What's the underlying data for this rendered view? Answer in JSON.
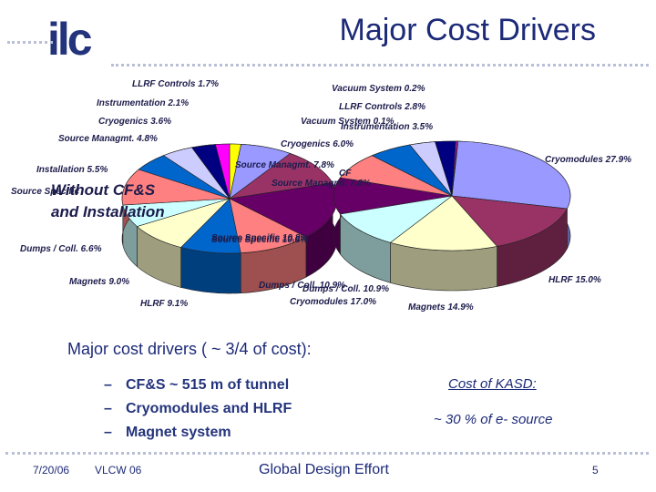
{
  "header": {
    "logo_text": "ilc",
    "title": "Major Cost Drivers"
  },
  "chart_annotation": {
    "line1": "Without CF&S",
    "line2": "and Installation"
  },
  "colors": {
    "title": "#1c2a78",
    "logo": "#24347c",
    "dots": "#b8bfd6"
  },
  "chart_data": [
    {
      "type": "pie",
      "title": "",
      "slices": [
        {
          "label": "LLRF Controls",
          "value": 1.7,
          "text": "LLRF Controls 1.7%",
          "color": "#ffff00"
        },
        {
          "label": "Source Managmt.",
          "value": 7.8,
          "text": "Source Managmt. 7.8%",
          "color": "#9999ff"
        },
        {
          "label": "Source Specific",
          "value": 10.8,
          "text": "Source Specific 10.8%",
          "color": "#993366"
        },
        {
          "label": "Cryomodules",
          "value": 17.0,
          "text": "Cryomodules 17.0%",
          "color": "#660066"
        },
        {
          "label": "Dumps / Coll.",
          "value": 10.9,
          "text": "Dumps / Coll. 10.9%",
          "color": "#ff8080"
        },
        {
          "label": "HLRF",
          "value": 9.1,
          "text": "HLRF 9.1%",
          "color": "#0066cc"
        },
        {
          "label": "Magnets",
          "value": 9.0,
          "text": "Magnets 9.0%",
          "color": "#ffffcc"
        },
        {
          "label": "Dumps / Coll.",
          "value": 6.6,
          "text": "Dumps / Coll. 6.6%",
          "color": "#ccffff"
        },
        {
          "label": "Source Specific",
          "value": 10.8,
          "text": "Source Specific",
          "color": "#ff8080"
        },
        {
          "label": "Installation",
          "value": 5.5,
          "text": "Installation 5.5%",
          "color": "#0066cc"
        },
        {
          "label": "Source Managmt.",
          "value": 4.8,
          "text": "Source Managmt. 4.8%",
          "color": "#ccccff"
        },
        {
          "label": "Cryogenics",
          "value": 3.6,
          "text": "Cryogenics 3.6%",
          "color": "#000080"
        },
        {
          "label": "Instrumentation",
          "value": 2.1,
          "text": "Instrumentation 2.1%",
          "color": "#ff00ff"
        }
      ]
    },
    {
      "type": "pie",
      "title": "",
      "slices": [
        {
          "label": "Cryomodules",
          "value": 27.9,
          "text": "Cryomodules 27.9%",
          "color": "#9999ff"
        },
        {
          "label": "HLRF",
          "value": 15.0,
          "text": "HLRF 15.0%",
          "color": "#993366"
        },
        {
          "label": "Magnets",
          "value": 14.9,
          "text": "Magnets 14.9%",
          "color": "#ffffcc"
        },
        {
          "label": "Dumps / Coll.",
          "value": 10.9,
          "text": "Dumps / Coll. 10.9%",
          "color": "#ccffff"
        },
        {
          "label": "Source Specific",
          "value": 10.8,
          "text": "Source Specific 10.8%",
          "color": "#660066"
        },
        {
          "label": "Source Managmt.",
          "value": 7.8,
          "text": "Source Managmt. 7.8%",
          "color": "#ff8080"
        },
        {
          "label": "Cryogenics",
          "value": 6.0,
          "text": "Cryogenics 6.0%",
          "color": "#0066cc"
        },
        {
          "label": "Instrumentation",
          "value": 3.5,
          "text": "Instrumentation 3.5%",
          "color": "#ccccff"
        },
        {
          "label": "LLRF Controls",
          "value": 2.8,
          "text": "LLRF Controls 2.8%",
          "color": "#000080"
        },
        {
          "label": "Vacuum System",
          "value": 0.2,
          "text": "Vacuum System 0.2%",
          "color": "#ff00ff"
        },
        {
          "label": "Vacuum System",
          "value": 0.1,
          "text": "Vacuum System 0.1%",
          "color": "#ffff00"
        },
        {
          "label": "CF&S",
          "value": 0,
          "text": "CF",
          "color": "#ffffff"
        }
      ]
    }
  ],
  "content": {
    "main_text": "Major cost drivers ( ~ 3/4 of cost):",
    "bullets": [
      "CF&S ~ 515 m of tunnel",
      "Cryomodules and HLRF",
      "Magnet system"
    ],
    "bullet_marker": "–",
    "kasd_title": "Cost of KASD:",
    "kasd_value": "~ 30 % of e- source"
  },
  "footer": {
    "date": "7/20/06",
    "event": "VLCW 06",
    "center": "Global Design Effort",
    "page": "5"
  }
}
